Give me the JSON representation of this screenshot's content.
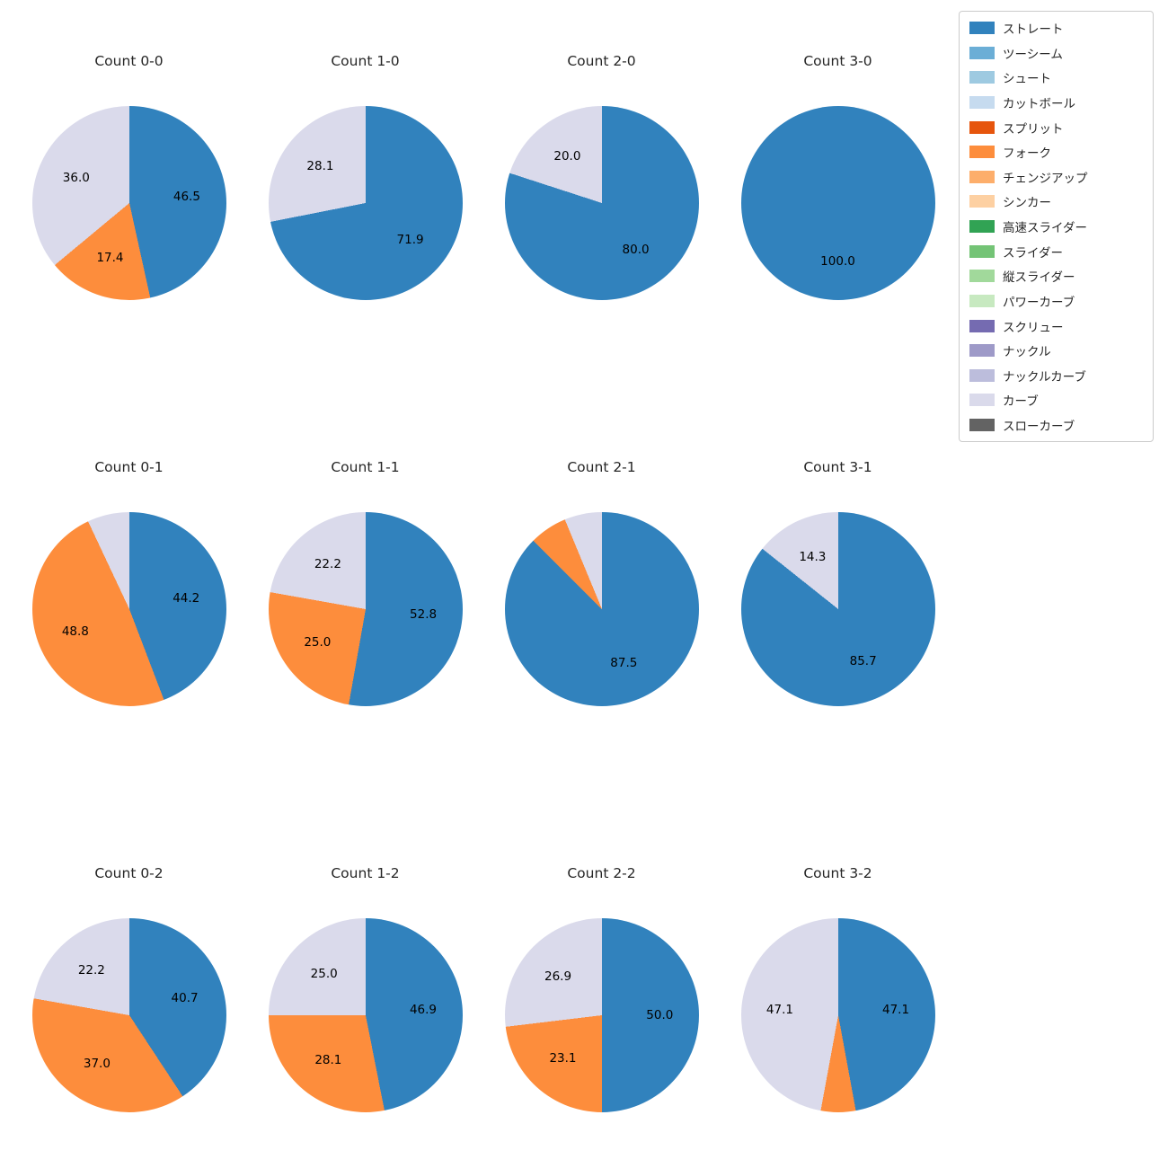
{
  "page": {
    "background": "#ffffff"
  },
  "legend": {
    "position": "upper-right",
    "items": [
      {
        "label": "ストレート",
        "color": "#3182bd"
      },
      {
        "label": "ツーシーム",
        "color": "#6baed6"
      },
      {
        "label": "シュート",
        "color": "#9ecae1"
      },
      {
        "label": "カットボール",
        "color": "#c6dbef"
      },
      {
        "label": "スプリット",
        "color": "#e6550d"
      },
      {
        "label": "フォーク",
        "color": "#fd8d3c"
      },
      {
        "label": "チェンジアップ",
        "color": "#fdae6b"
      },
      {
        "label": "シンカー",
        "color": "#fdd0a2"
      },
      {
        "label": "高速スライダー",
        "color": "#31a354"
      },
      {
        "label": "スライダー",
        "color": "#74c476"
      },
      {
        "label": "縦スライダー",
        "color": "#a1d99b"
      },
      {
        "label": "パワーカーブ",
        "color": "#c7e9c0"
      },
      {
        "label": "スクリュー",
        "color": "#756bb1"
      },
      {
        "label": "ナックル",
        "color": "#9e9ac8"
      },
      {
        "label": "ナックルカーブ",
        "color": "#bcbddc"
      },
      {
        "label": "カーブ",
        "color": "#dadaeb"
      },
      {
        "label": "スローカーブ",
        "color": "#636363"
      }
    ]
  },
  "chart_data": [
    {
      "type": "pie",
      "title": "Count 0-0",
      "start_angle_deg": 90,
      "direction": "clockwise",
      "slices": [
        {
          "label": "ストレート",
          "value": 46.5,
          "pct_label": "46.5",
          "color": "#3182bd"
        },
        {
          "label": "フォーク",
          "value": 17.4,
          "pct_label": "17.4",
          "color": "#fd8d3c"
        },
        {
          "label": "カーブ",
          "value": 36.0,
          "pct_label": "36.0",
          "color": "#dadaeb"
        }
      ]
    },
    {
      "type": "pie",
      "title": "Count 1-0",
      "start_angle_deg": 90,
      "direction": "clockwise",
      "slices": [
        {
          "label": "ストレート",
          "value": 71.9,
          "pct_label": "71.9",
          "color": "#3182bd"
        },
        {
          "label": "カーブ",
          "value": 28.1,
          "pct_label": "28.1",
          "color": "#dadaeb"
        }
      ]
    },
    {
      "type": "pie",
      "title": "Count 2-0",
      "start_angle_deg": 90,
      "direction": "clockwise",
      "slices": [
        {
          "label": "ストレート",
          "value": 80.0,
          "pct_label": "80.0",
          "color": "#3182bd"
        },
        {
          "label": "カーブ",
          "value": 20.0,
          "pct_label": "20.0",
          "color": "#dadaeb"
        }
      ]
    },
    {
      "type": "pie",
      "title": "Count 3-0",
      "start_angle_deg": 90,
      "direction": "clockwise",
      "slices": [
        {
          "label": "ストレート",
          "value": 100.0,
          "pct_label": "100.0",
          "color": "#3182bd"
        }
      ]
    },
    {
      "type": "pie",
      "title": "Count 0-1",
      "start_angle_deg": 90,
      "direction": "clockwise",
      "slices": [
        {
          "label": "ストレート",
          "value": 44.2,
          "pct_label": "44.2",
          "color": "#3182bd"
        },
        {
          "label": "フォーク",
          "value": 48.8,
          "pct_label": "48.8",
          "color": "#fd8d3c"
        },
        {
          "label": "カーブ",
          "value": 7.0,
          "pct_label": null,
          "color": "#dadaeb"
        }
      ]
    },
    {
      "type": "pie",
      "title": "Count 1-1",
      "start_angle_deg": 90,
      "direction": "clockwise",
      "slices": [
        {
          "label": "ストレート",
          "value": 52.8,
          "pct_label": "52.8",
          "color": "#3182bd"
        },
        {
          "label": "フォーク",
          "value": 25.0,
          "pct_label": "25.0",
          "color": "#fd8d3c"
        },
        {
          "label": "カーブ",
          "value": 22.2,
          "pct_label": "22.2",
          "color": "#dadaeb"
        }
      ]
    },
    {
      "type": "pie",
      "title": "Count 2-1",
      "start_angle_deg": 90,
      "direction": "clockwise",
      "slices": [
        {
          "label": "ストレート",
          "value": 87.5,
          "pct_label": "87.5",
          "color": "#3182bd"
        },
        {
          "label": "フォーク",
          "value": 6.25,
          "pct_label": null,
          "color": "#fd8d3c"
        },
        {
          "label": "カーブ",
          "value": 6.25,
          "pct_label": null,
          "color": "#dadaeb"
        }
      ]
    },
    {
      "type": "pie",
      "title": "Count 3-1",
      "start_angle_deg": 90,
      "direction": "clockwise",
      "slices": [
        {
          "label": "ストレート",
          "value": 85.7,
          "pct_label": "85.7",
          "color": "#3182bd"
        },
        {
          "label": "カーブ",
          "value": 14.3,
          "pct_label": "14.3",
          "color": "#dadaeb"
        }
      ]
    },
    {
      "type": "pie",
      "title": "Count 0-2",
      "start_angle_deg": 90,
      "direction": "clockwise",
      "slices": [
        {
          "label": "ストレート",
          "value": 40.7,
          "pct_label": "40.7",
          "color": "#3182bd"
        },
        {
          "label": "フォーク",
          "value": 37.0,
          "pct_label": "37.0",
          "color": "#fd8d3c"
        },
        {
          "label": "カーブ",
          "value": 22.2,
          "pct_label": "22.2",
          "color": "#dadaeb"
        }
      ]
    },
    {
      "type": "pie",
      "title": "Count 1-2",
      "start_angle_deg": 90,
      "direction": "clockwise",
      "slices": [
        {
          "label": "ストレート",
          "value": 46.9,
          "pct_label": "46.9",
          "color": "#3182bd"
        },
        {
          "label": "フォーク",
          "value": 28.1,
          "pct_label": "28.1",
          "color": "#fd8d3c"
        },
        {
          "label": "カーブ",
          "value": 25.0,
          "pct_label": "25.0",
          "color": "#dadaeb"
        }
      ]
    },
    {
      "type": "pie",
      "title": "Count 2-2",
      "start_angle_deg": 90,
      "direction": "clockwise",
      "slices": [
        {
          "label": "ストレート",
          "value": 50.0,
          "pct_label": "50.0",
          "color": "#3182bd"
        },
        {
          "label": "フォーク",
          "value": 23.1,
          "pct_label": "23.1",
          "color": "#fd8d3c"
        },
        {
          "label": "カーブ",
          "value": 26.9,
          "pct_label": "26.9",
          "color": "#dadaeb"
        }
      ]
    },
    {
      "type": "pie",
      "title": "Count 3-2",
      "start_angle_deg": 90,
      "direction": "clockwise",
      "slices": [
        {
          "label": "ストレート",
          "value": 47.1,
          "pct_label": "47.1",
          "color": "#3182bd"
        },
        {
          "label": "フォーク",
          "value": 5.8,
          "pct_label": null,
          "color": "#fd8d3c"
        },
        {
          "label": "カーブ",
          "value": 47.1,
          "pct_label": "47.1",
          "color": "#dadaeb"
        }
      ]
    }
  ]
}
